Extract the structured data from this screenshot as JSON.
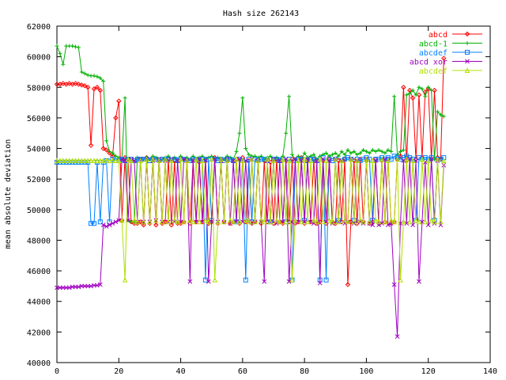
{
  "chart_data": {
    "type": "line",
    "title": "Hash size 262143",
    "xlabel": "",
    "ylabel": "mean absolute deviation",
    "xlim": [
      0,
      140
    ],
    "ylim": [
      40000,
      62000
    ],
    "xticks": [
      0,
      20,
      40,
      60,
      80,
      100,
      120,
      140
    ],
    "yticks": [
      40000,
      42000,
      44000,
      46000,
      48000,
      50000,
      52000,
      54000,
      56000,
      58000,
      60000,
      62000
    ],
    "grid": false,
    "legend_position": "top-right",
    "x": [
      0,
      1,
      2,
      3,
      4,
      5,
      6,
      7,
      8,
      9,
      10,
      11,
      12,
      13,
      14,
      15,
      16,
      17,
      18,
      19,
      20,
      21,
      22,
      23,
      24,
      25,
      26,
      27,
      28,
      29,
      30,
      31,
      32,
      33,
      34,
      35,
      36,
      37,
      38,
      39,
      40,
      41,
      42,
      43,
      44,
      45,
      46,
      47,
      48,
      49,
      50,
      51,
      52,
      53,
      54,
      55,
      56,
      57,
      58,
      59,
      60,
      61,
      62,
      63,
      64,
      65,
      66,
      67,
      68,
      69,
      70,
      71,
      72,
      73,
      74,
      75,
      76,
      77,
      78,
      79,
      80,
      81,
      82,
      83,
      84,
      85,
      86,
      87,
      88,
      89,
      90,
      91,
      92,
      93,
      94,
      95,
      96,
      97,
      98,
      99,
      100,
      101,
      102,
      103,
      104,
      105,
      106,
      107,
      108,
      109,
      110,
      111,
      112,
      113,
      114,
      115,
      116,
      117,
      118,
      119,
      120,
      121,
      122,
      123,
      124,
      125
    ],
    "series": [
      {
        "name": "abcd",
        "color": "#ff0000",
        "marker": "diamond",
        "values": [
          58200,
          58200,
          58250,
          58200,
          58250,
          58200,
          58250,
          58200,
          58150,
          58100,
          58000,
          54200,
          57900,
          58000,
          57800,
          54000,
          53900,
          53700,
          53500,
          56000,
          57100,
          49300,
          53400,
          53300,
          49200,
          49100,
          49100,
          49200,
          49000,
          53400,
          49100,
          53300,
          49000,
          53200,
          49100,
          49200,
          53300,
          49000,
          53200,
          49100,
          49100,
          49200,
          53300,
          49100,
          53200,
          49200,
          53100,
          49200,
          53300,
          49100,
          49200,
          53400,
          49100,
          53300,
          49200,
          53200,
          49100,
          49200,
          53300,
          49100,
          53400,
          49200,
          53200,
          49100,
          49200,
          53300,
          49100,
          53200,
          49200,
          53100,
          49100,
          53300,
          49200,
          49100,
          53200,
          49200,
          53300,
          49100,
          49200,
          53400,
          49100,
          53200,
          49200,
          53300,
          49100,
          49200,
          53200,
          49100,
          53300,
          49200,
          49100,
          53200,
          49200,
          53300,
          45100,
          49200,
          53200,
          49100,
          53300,
          49200,
          53200,
          49100,
          49200,
          53300,
          49100,
          53200,
          49200,
          53300,
          49100,
          49200,
          53300,
          53500,
          58000,
          53200,
          57800,
          57300,
          53300,
          57500,
          53400,
          57700,
          57900,
          53300,
          57800,
          53400,
          53300,
          59900
        ]
      },
      {
        "name": "abcd-1",
        "color": "#00b000",
        "marker": "plus",
        "values": [
          60700,
          60200,
          59500,
          60700,
          60700,
          60700,
          60650,
          60600,
          59000,
          58900,
          58800,
          58750,
          58750,
          58700,
          58600,
          58400,
          54500,
          53800,
          53700,
          53500,
          53400,
          53300,
          57300,
          49300,
          49200,
          49200,
          53400,
          53300,
          53300,
          53400,
          53300,
          53500,
          53400,
          53300,
          53300,
          53400,
          53500,
          53300,
          53400,
          53300,
          53500,
          53300,
          53400,
          53300,
          53500,
          53300,
          53400,
          53500,
          53300,
          53400,
          53500,
          53300,
          53400,
          53300,
          53300,
          53500,
          53400,
          53300,
          53800,
          55000,
          57300,
          54000,
          53600,
          53500,
          53500,
          53400,
          53500,
          53300,
          53400,
          53500,
          53300,
          53400,
          53300,
          53500,
          55000,
          57400,
          53600,
          53300,
          53500,
          53300,
          53700,
          53400,
          53500,
          53600,
          53300,
          53500,
          53600,
          53700,
          53500,
          53600,
          53700,
          53500,
          53800,
          53600,
          53900,
          53700,
          53800,
          53600,
          53700,
          53900,
          53800,
          53700,
          53900,
          53800,
          53900,
          53800,
          53700,
          53900,
          53800,
          57400,
          53600,
          53800,
          53900,
          57500,
          57600,
          57800,
          57500,
          58000,
          57900,
          57400,
          58000,
          57800,
          53300,
          56400,
          56200,
          56100
        ]
      },
      {
        "name": "abcdef",
        "color": "#0080ff",
        "marker": "square",
        "values": [
          53100,
          53100,
          53100,
          53100,
          53100,
          53100,
          53100,
          53100,
          53100,
          53100,
          53100,
          49100,
          49100,
          53100,
          49200,
          53100,
          53200,
          49200,
          53300,
          53200,
          53200,
          53300,
          53200,
          53300,
          53300,
          53200,
          53300,
          53300,
          53300,
          53300,
          53200,
          53300,
          53300,
          53200,
          53300,
          53300,
          53300,
          53200,
          53300,
          53200,
          53300,
          53300,
          53200,
          53200,
          53300,
          53300,
          53200,
          53300,
          45400,
          53300,
          49300,
          53300,
          53200,
          53300,
          53200,
          53300,
          53300,
          53200,
          49200,
          53300,
          53200,
          45400,
          53300,
          49200,
          53300,
          53200,
          53300,
          53300,
          53200,
          49200,
          53300,
          53300,
          53200,
          53300,
          49200,
          53300,
          45400,
          53200,
          53300,
          53300,
          49300,
          53200,
          53300,
          53300,
          53200,
          45400,
          53400,
          45400,
          53300,
          53200,
          53300,
          49300,
          53200,
          53300,
          53400,
          53300,
          49300,
          53300,
          53200,
          53300,
          53400,
          53300,
          49300,
          53300,
          53300,
          53400,
          53300,
          53400,
          53300,
          53500,
          53400,
          53300,
          53400,
          53500,
          53400,
          53300,
          49300,
          53400,
          53300,
          53400,
          53300,
          53400,
          49300,
          53300,
          53300,
          53400
        ]
      },
      {
        "name": "abcd xor",
        "color": "#a000c0",
        "marker": "cross",
        "values": [
          44900,
          44900,
          44900,
          44900,
          44900,
          44950,
          44950,
          44950,
          45000,
          45000,
          45000,
          45000,
          45050,
          45050,
          45100,
          49000,
          48900,
          49000,
          49100,
          49200,
          49300,
          53300,
          53200,
          49300,
          53300,
          53200,
          49200,
          53300,
          49200,
          53300,
          49200,
          53200,
          49300,
          53300,
          49200,
          53200,
          49200,
          53300,
          49200,
          53200,
          49200,
          53300,
          53200,
          45300,
          53200,
          49200,
          53300,
          49200,
          53200,
          45300,
          49200,
          53300,
          49200,
          53200,
          49200,
          53300,
          49100,
          53200,
          49200,
          53300,
          49200,
          53200,
          49200,
          53300,
          49200,
          53200,
          49200,
          45300,
          53200,
          49200,
          53300,
          49100,
          53200,
          49200,
          53300,
          45300,
          49200,
          53300,
          49200,
          53200,
          49200,
          53300,
          49200,
          49100,
          53200,
          45200,
          53300,
          49200,
          53200,
          49100,
          53300,
          49200,
          53200,
          49100,
          49200,
          53300,
          49100,
          53200,
          49200,
          49100,
          53300,
          49100,
          49000,
          53200,
          49000,
          49100,
          53300,
          49000,
          49100,
          45100,
          41700,
          49100,
          53200,
          49100,
          53300,
          49000,
          53200,
          45300,
          49200,
          53100,
          49000,
          53300,
          49100,
          53200,
          49000,
          52900
        ]
      },
      {
        "name": "abcdef",
        "color": "#b0e000",
        "marker": "triangle",
        "values": [
          53200,
          53200,
          53200,
          53200,
          53200,
          53200,
          53200,
          53200,
          53200,
          53200,
          53200,
          53200,
          53200,
          53200,
          53200,
          53200,
          53200,
          53200,
          53200,
          53200,
          53200,
          49300,
          45400,
          53300,
          53200,
          49300,
          49200,
          53200,
          49200,
          53300,
          49200,
          53300,
          49300,
          53200,
          49200,
          53300,
          49200,
          53200,
          49300,
          49200,
          53300,
          49200,
          53200,
          49300,
          49200,
          53300,
          49200,
          53200,
          49300,
          49200,
          53300,
          45400,
          49200,
          53300,
          49200,
          53200,
          49300,
          49200,
          53300,
          49200,
          53200,
          49300,
          49200,
          53300,
          49200,
          53200,
          49300,
          49200,
          53300,
          49200,
          53200,
          49300,
          49200,
          53300,
          49200,
          53200,
          45400,
          49300,
          53200,
          49200,
          53300,
          49200,
          53200,
          49300,
          49200,
          53300,
          49200,
          53200,
          49300,
          49200,
          53300,
          49200,
          53200,
          49300,
          49200,
          53300,
          49200,
          53200,
          49300,
          49200,
          53300,
          49200,
          53200,
          49300,
          49200,
          53300,
          49200,
          53200,
          49300,
          49200,
          53300,
          45400,
          49200,
          53300,
          49200,
          53200,
          49300,
          49200,
          53300,
          49200,
          53200,
          49300,
          49200,
          53300,
          49200,
          53200
        ]
      }
    ]
  }
}
